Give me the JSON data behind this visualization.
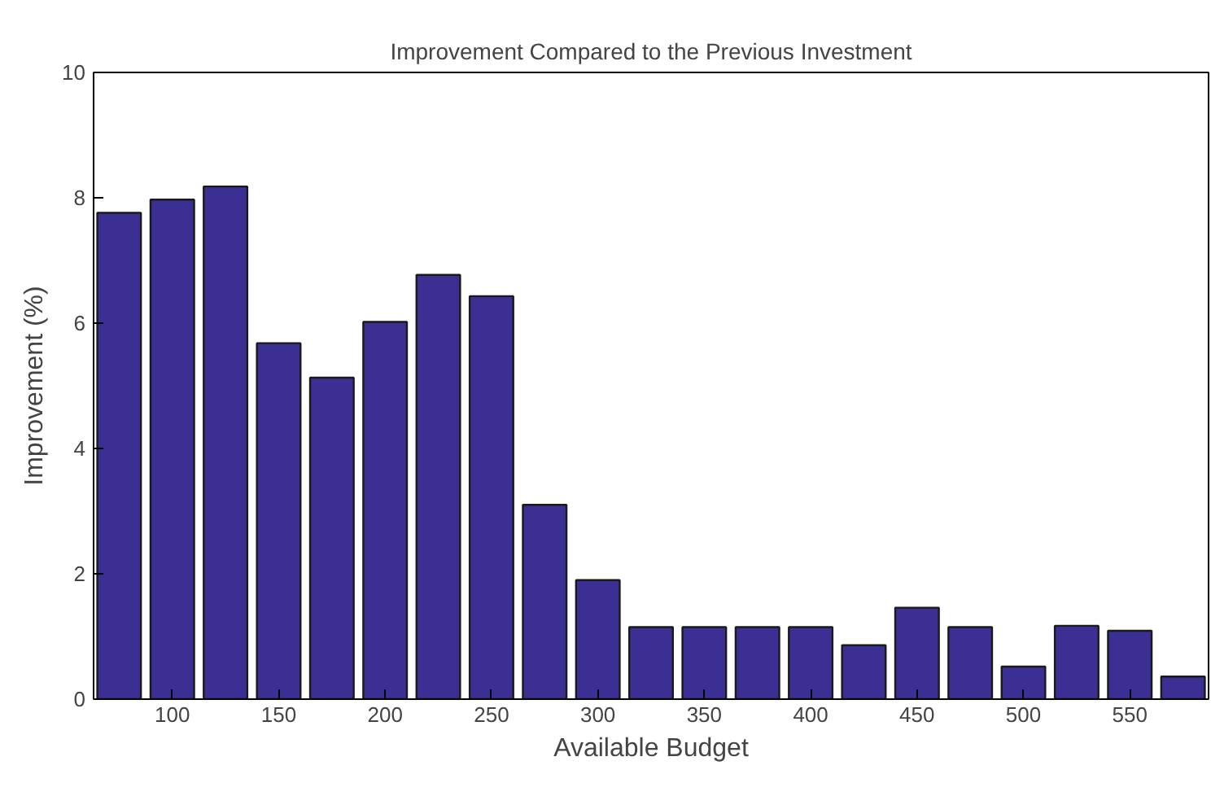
{
  "chart_data": {
    "type": "bar",
    "title": "Improvement Compared to the Previous Investment",
    "xlabel": "Available Budget",
    "ylabel": "Improvement (%)",
    "x": [
      75,
      100,
      125,
      150,
      175,
      200,
      225,
      250,
      275,
      300,
      325,
      350,
      375,
      400,
      425,
      450,
      475,
      500,
      525,
      550,
      575
    ],
    "values": [
      7.76,
      7.97,
      8.18,
      5.68,
      5.13,
      6.02,
      6.77,
      6.43,
      3.1,
      1.9,
      1.15,
      1.15,
      1.15,
      1.15,
      0.86,
      1.46,
      1.15,
      0.52,
      1.17,
      1.09,
      0.36
    ],
    "color": "#3c2f94",
    "xlim": [
      63,
      587
    ],
    "ylim": [
      0,
      10
    ],
    "xticks": [
      100,
      150,
      200,
      250,
      300,
      350,
      400,
      450,
      500,
      550
    ],
    "yticks": [
      0,
      2,
      4,
      6,
      8,
      10
    ],
    "grid": false
  }
}
